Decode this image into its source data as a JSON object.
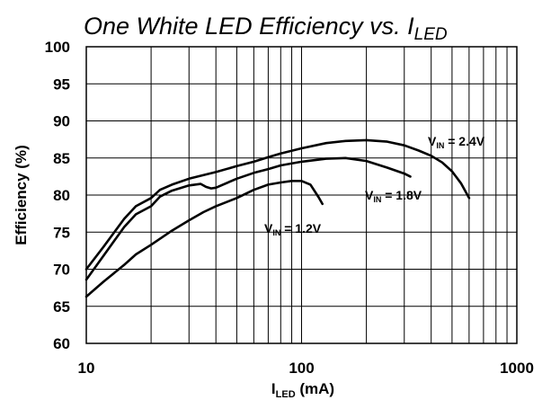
{
  "chart_data": {
    "type": "line",
    "title": {
      "main": "One White LED Efficiency vs. I",
      "sub": "LED"
    },
    "xlabel": {
      "main": "I",
      "sub": "LED",
      "unit": " (mA)"
    },
    "ylabel": "Efficiency (%)",
    "x_scale": "log",
    "xlim": [
      10,
      1000
    ],
    "ylim": [
      60,
      100
    ],
    "x_ticks": [
      10,
      100,
      1000
    ],
    "x_tick_labels": [
      "10",
      "100",
      "1000"
    ],
    "y_ticks": [
      60,
      65,
      70,
      75,
      80,
      85,
      90,
      95,
      100
    ],
    "y_tick_labels": [
      "60",
      "65",
      "70",
      "75",
      "80",
      "85",
      "90",
      "95",
      "100"
    ],
    "grid": true,
    "series": [
      {
        "label": {
          "main": "V",
          "sub": "IN",
          "value": " = 2.4V"
        },
        "x": [
          10,
          12,
          15,
          17,
          20,
          22,
          25,
          30,
          40,
          50,
          60,
          70,
          80,
          100,
          130,
          160,
          200,
          250,
          300,
          350,
          400,
          450,
          500,
          550,
          600
        ],
        "y": [
          70.0,
          73.0,
          76.8,
          78.5,
          79.6,
          80.7,
          81.4,
          82.2,
          83.1,
          83.9,
          84.5,
          85.1,
          85.6,
          86.3,
          87.0,
          87.3,
          87.4,
          87.2,
          86.7,
          86.0,
          85.3,
          84.4,
          83.2,
          81.6,
          79.6
        ]
      },
      {
        "label": {
          "main": "V",
          "sub": "IN",
          "value": " = 1.8V"
        },
        "x": [
          10,
          12,
          15,
          17,
          20,
          22,
          25,
          30,
          34,
          36,
          38,
          40,
          50,
          60,
          70,
          80,
          100,
          130,
          160,
          200,
          250,
          300,
          320
        ],
        "y": [
          68.6,
          71.8,
          75.7,
          77.4,
          78.5,
          79.8,
          80.6,
          81.3,
          81.5,
          81.1,
          80.9,
          81.0,
          82.2,
          83.0,
          83.5,
          84.0,
          84.5,
          84.9,
          85.0,
          84.6,
          83.7,
          82.9,
          82.5
        ]
      },
      {
        "label": {
          "main": "V",
          "sub": "IN",
          "value": " = 1.2V"
        },
        "x": [
          10,
          12,
          15,
          17,
          20,
          25,
          30,
          35,
          40,
          50,
          60,
          70,
          80,
          90,
          100,
          110,
          120,
          125
        ],
        "y": [
          66.3,
          68.3,
          70.6,
          72.0,
          73.3,
          75.2,
          76.6,
          77.7,
          78.5,
          79.6,
          80.7,
          81.4,
          81.7,
          81.9,
          81.9,
          81.4,
          79.7,
          78.8
        ]
      }
    ]
  }
}
